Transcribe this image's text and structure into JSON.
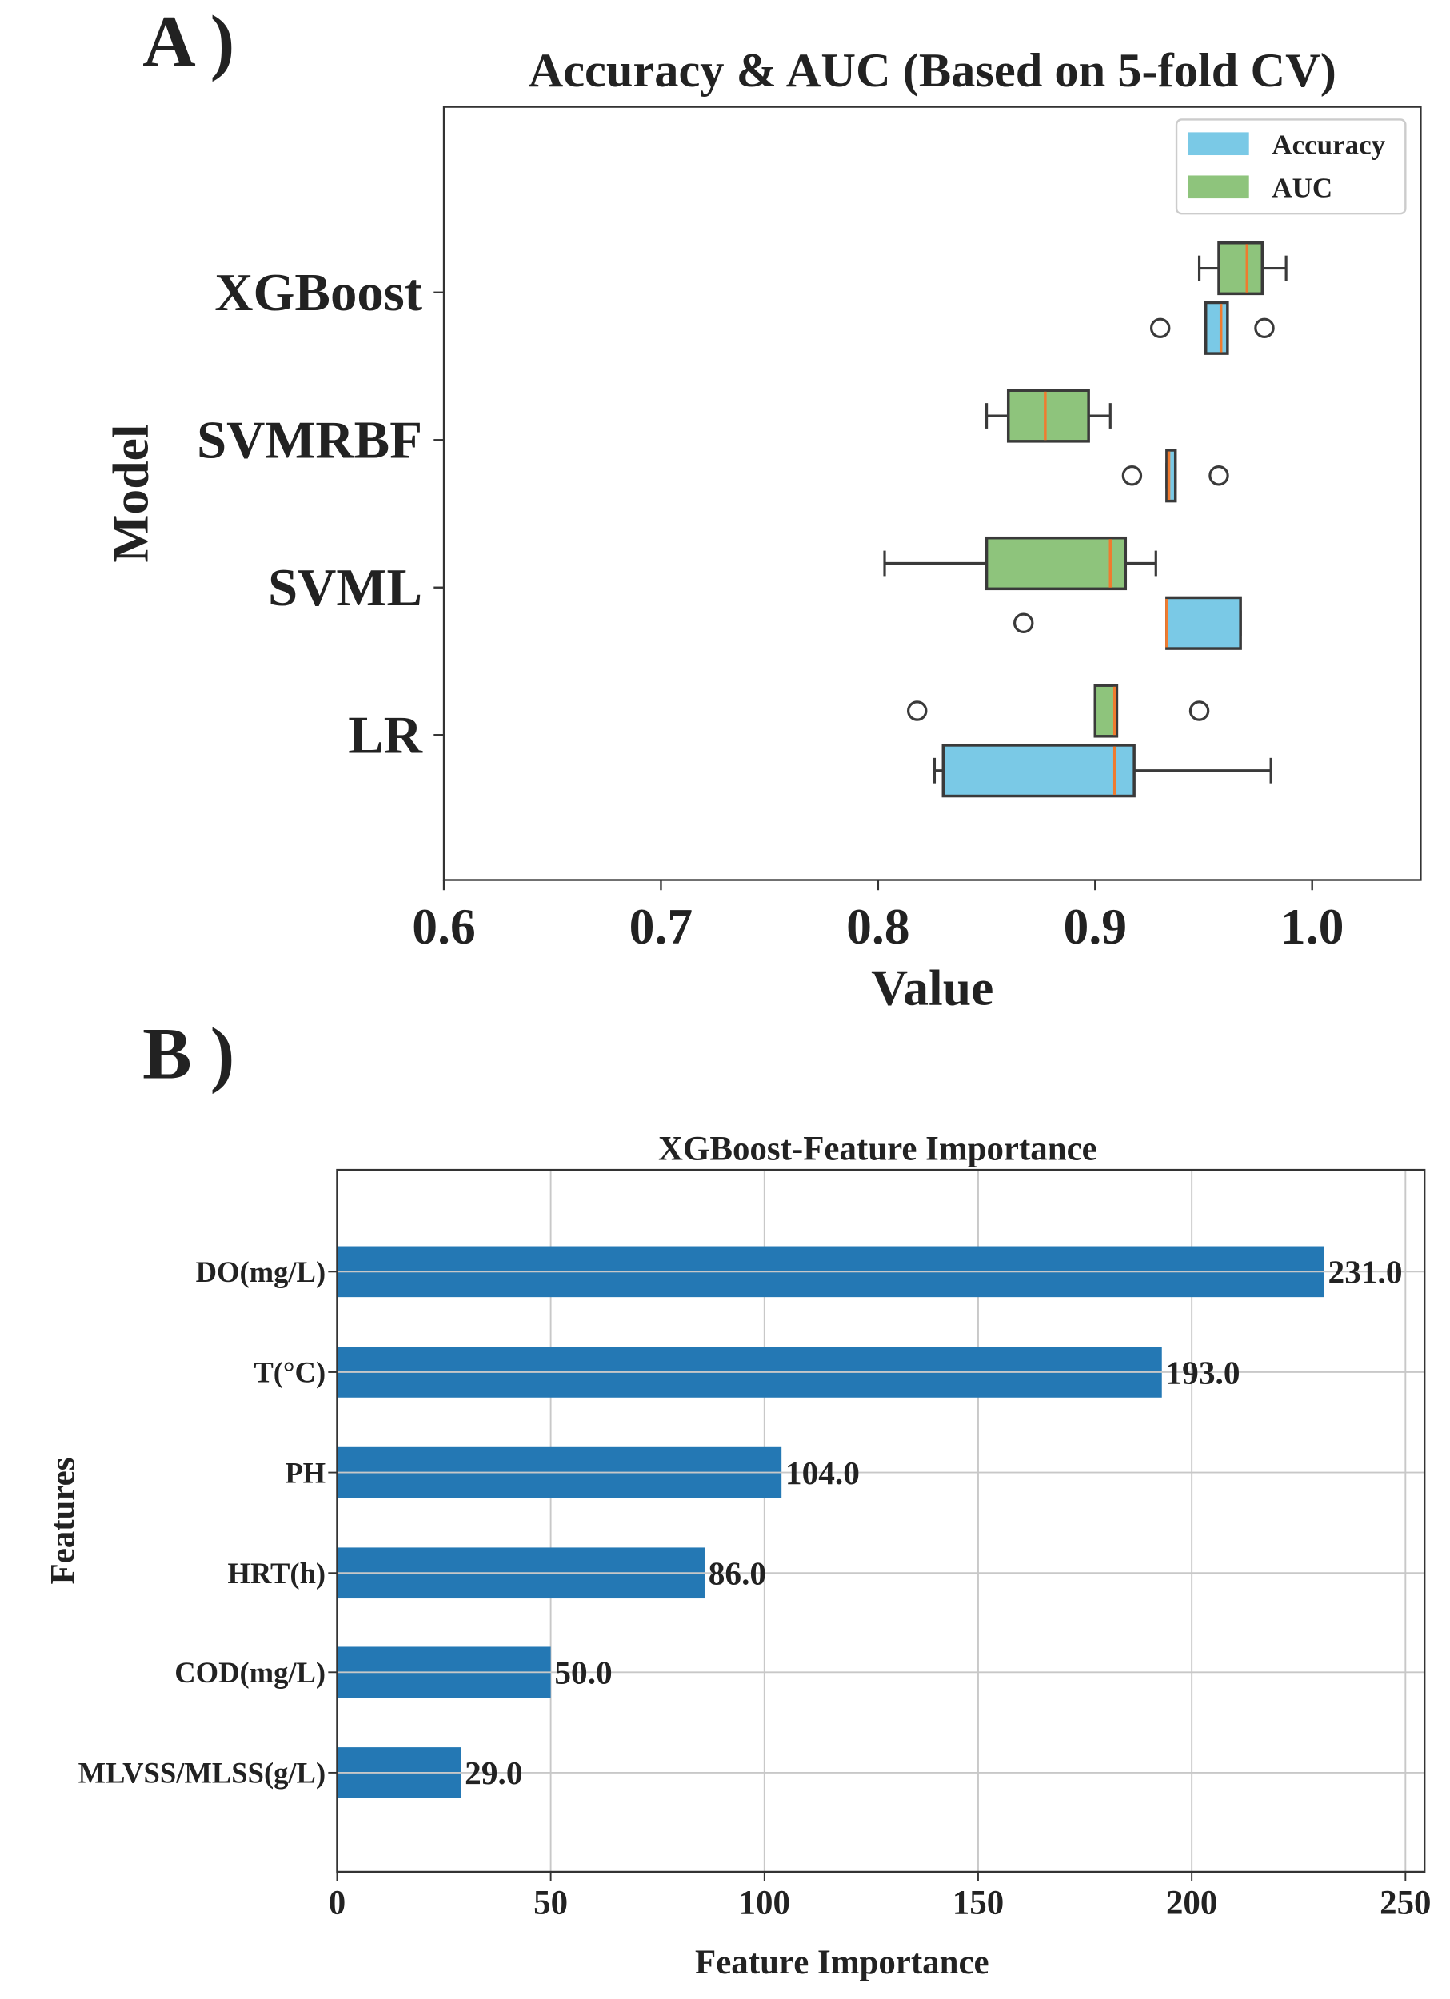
{
  "panel_labels": [
    "A )",
    "B )"
  ],
  "chart_data": [
    {
      "type": "boxplot",
      "title": "Accuracy & AUC (Based on 5-fold CV)",
      "xlabel": "Value",
      "ylabel": "Model",
      "xlim": [
        0.6,
        1.05
      ],
      "xticks": [
        "0.6",
        "0.7",
        "0.8",
        "0.9",
        "1.0"
      ],
      "xtick_values": [
        0.6,
        0.7,
        0.8,
        0.9,
        1.0
      ],
      "categories": [
        "XGBoost",
        "SVMRBF",
        "SVML",
        "LR"
      ],
      "legend": {
        "placement": "top-right",
        "entries": [
          "Accuracy",
          "AUC"
        ]
      },
      "colors": {
        "Accuracy": "#7ac9e6",
        "AUC": "#8ec47c",
        "median": "#f07b2f",
        "edge": "#3a3a3a"
      },
      "series": [
        {
          "name": "AUC",
          "boxes": [
            {
              "whislo": 0.948,
              "q1": 0.957,
              "med": 0.97,
              "q3": 0.977,
              "whishi": 0.988,
              "fliers": []
            },
            {
              "whislo": 0.85,
              "q1": 0.86,
              "med": 0.877,
              "q3": 0.897,
              "whishi": 0.907,
              "fliers": []
            },
            {
              "whislo": 0.803,
              "q1": 0.85,
              "med": 0.907,
              "q3": 0.914,
              "whishi": 0.928,
              "fliers": []
            },
            {
              "whislo": 0.9,
              "q1": 0.9,
              "med": 0.909,
              "q3": 0.91,
              "whishi": 0.91,
              "fliers": [
                0.818,
                0.948
              ]
            }
          ]
        },
        {
          "name": "Accuracy",
          "boxes": [
            {
              "whislo": 0.951,
              "q1": 0.951,
              "med": 0.958,
              "q3": 0.961,
              "whishi": 0.961,
              "fliers": [
                0.93,
                0.978
              ]
            },
            {
              "whislo": 0.933,
              "q1": 0.933,
              "med": 0.934,
              "q3": 0.937,
              "whishi": 0.937,
              "fliers": [
                0.917,
                0.957
              ]
            },
            {
              "whislo": 0.933,
              "q1": 0.933,
              "med": 0.933,
              "q3": 0.967,
              "whishi": 0.967,
              "fliers": [
                0.867
              ]
            },
            {
              "whislo": 0.826,
              "q1": 0.83,
              "med": 0.909,
              "q3": 0.918,
              "whishi": 0.981,
              "fliers": []
            }
          ]
        }
      ]
    },
    {
      "type": "bar",
      "orientation": "horizontal",
      "title": "XGBoost-Feature Importance",
      "xlabel": "Feature Importance",
      "ylabel": "Features",
      "xlim": [
        0,
        255
      ],
      "xticks": [
        "0",
        "50",
        "100",
        "150",
        "200",
        "250"
      ],
      "xtick_values": [
        0,
        50,
        100,
        150,
        200,
        250
      ],
      "grid": true,
      "categories": [
        "DO(mg/L)",
        "T(°C)",
        "PH",
        "HRT(h)",
        "COD(mg/L)",
        "MLVSS/MLSS(g/L)"
      ],
      "values": [
        231,
        193,
        104,
        86,
        50,
        29
      ],
      "value_labels": [
        "231.0",
        "193.0",
        "104.0",
        "86.0",
        "50.0",
        "29.0"
      ],
      "color": "#2478b4"
    }
  ]
}
